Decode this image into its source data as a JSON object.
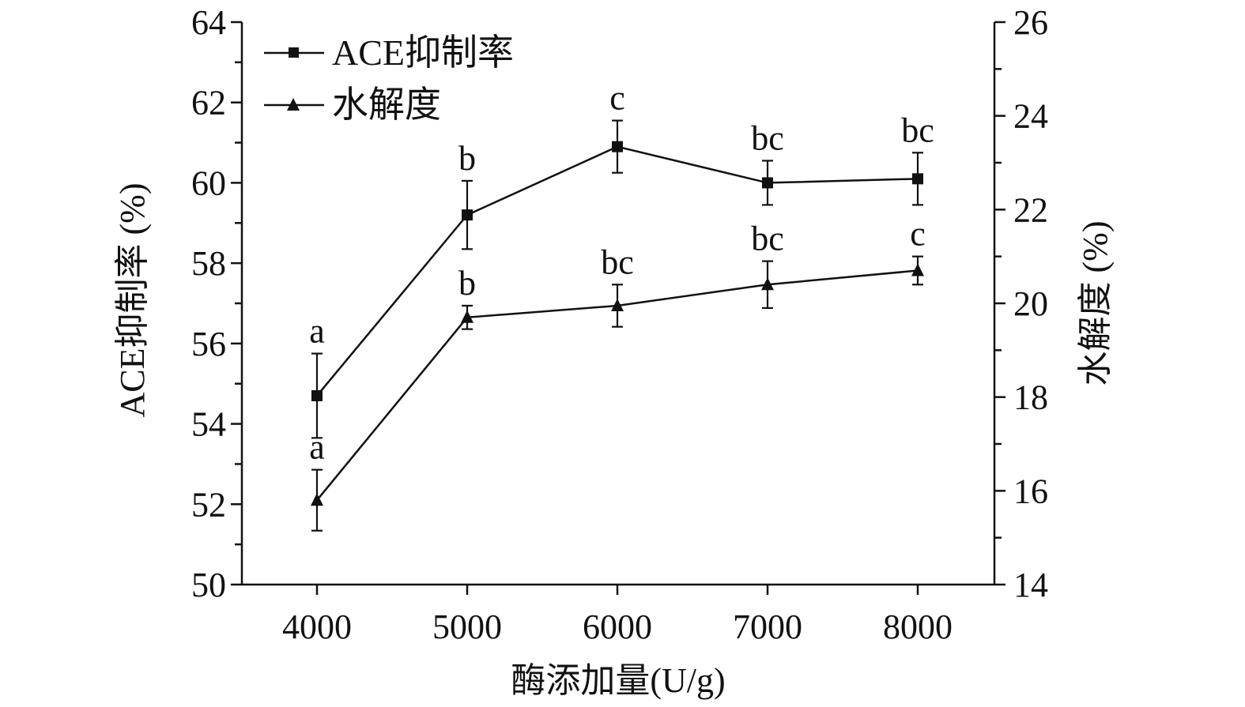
{
  "chart_data": {
    "type": "line",
    "x": [
      4000,
      5000,
      6000,
      7000,
      8000
    ],
    "x_tick_labels": [
      "4000",
      "5000",
      "6000",
      "7000",
      "8000"
    ],
    "xlabel": "酶添加量(U/g)",
    "ylabel": "ACE抑制率 (%)",
    "y2label": "水解度 (%)",
    "ylim": [
      50,
      64
    ],
    "y_ticks": [
      "50",
      "52",
      "54",
      "56",
      "58",
      "60",
      "62",
      "64"
    ],
    "y2lim": [
      14,
      26
    ],
    "y2_ticks": [
      "14",
      "16",
      "18",
      "20",
      "22",
      "24",
      "26"
    ],
    "series": [
      {
        "name": "ACE抑制率",
        "axis": "left",
        "marker": "square",
        "values": [
          54.7,
          59.2,
          60.9,
          60.0,
          60.1
        ],
        "error": [
          1.05,
          0.85,
          0.65,
          0.55,
          0.65
        ],
        "labels": [
          "a",
          "b",
          "c",
          "bc",
          "bc"
        ]
      },
      {
        "name": "水解度",
        "axis": "right",
        "marker": "triangle",
        "values": [
          15.8,
          19.7,
          19.95,
          20.4,
          20.7
        ],
        "error": [
          0.65,
          0.25,
          0.45,
          0.5,
          0.3
        ],
        "labels": [
          "a",
          "b",
          "bc",
          "bc",
          "c"
        ]
      }
    ],
    "legend_position": "top-left",
    "grid": false,
    "color": "#111111"
  }
}
